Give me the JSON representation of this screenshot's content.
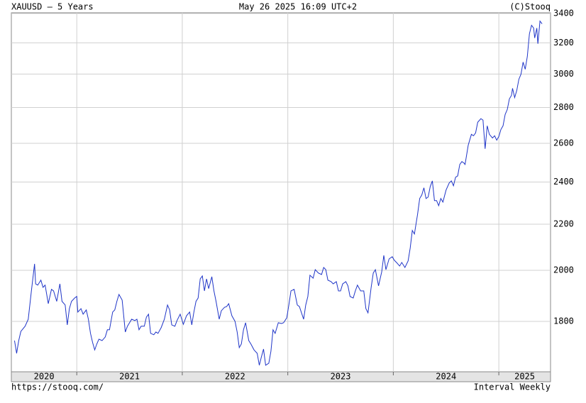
{
  "chart_data": {
    "type": "line",
    "title": "XAUUSD – 5 Years",
    "timestamp": "May 26 2025 16:09 UTC+2",
    "copyright": "(C)Stooq",
    "url": "https://stooq.com/",
    "interval_note": "Interval Weekly",
    "log_scale": true,
    "grid": true,
    "xlim": [
      2020.38,
      2025.49
    ],
    "xticks": [
      2020,
      2021,
      2022,
      2023,
      2024,
      2025
    ],
    "ylim": [
      1622,
      3405
    ],
    "yticks": [
      1800,
      2000,
      2200,
      2400,
      2600,
      2800,
      3000,
      3200,
      3400
    ],
    "x": [
      2020.41,
      2020.43,
      2020.45,
      2020.47,
      2020.51,
      2020.54,
      2020.57,
      2020.6,
      2020.61,
      2020.63,
      2020.66,
      2020.68,
      2020.7,
      2020.73,
      2020.76,
      2020.78,
      2020.81,
      2020.84,
      2020.86,
      2020.89,
      2020.91,
      2020.93,
      2020.95,
      2020.98,
      2021.0,
      2021.01,
      2021.04,
      2021.06,
      2021.09,
      2021.11,
      2021.13,
      2021.15,
      2021.17,
      2021.19,
      2021.21,
      2021.24,
      2021.27,
      2021.29,
      2021.31,
      2021.34,
      2021.36,
      2021.38,
      2021.4,
      2021.43,
      2021.46,
      2021.48,
      2021.5,
      2021.52,
      2021.55,
      2021.57,
      2021.59,
      2021.61,
      2021.64,
      2021.66,
      2021.68,
      2021.7,
      2021.73,
      2021.75,
      2021.77,
      2021.8,
      2021.83,
      2021.86,
      2021.88,
      2021.9,
      2021.93,
      2021.95,
      2021.98,
      2022.01,
      2022.04,
      2022.07,
      2022.09,
      2022.11,
      2022.13,
      2022.15,
      2022.17,
      2022.19,
      2022.21,
      2022.23,
      2022.25,
      2022.28,
      2022.3,
      2022.32,
      2022.35,
      2022.37,
      2022.4,
      2022.42,
      2022.44,
      2022.47,
      2022.5,
      2022.52,
      2022.54,
      2022.56,
      2022.58,
      2022.6,
      2022.63,
      2022.65,
      2022.68,
      2022.71,
      2022.73,
      2022.75,
      2022.77,
      2022.79,
      2022.82,
      2022.84,
      2022.86,
      2022.88,
      2022.91,
      2022.94,
      2022.96,
      2022.99,
      2023.01,
      2023.03,
      2023.06,
      2023.09,
      2023.11,
      2023.15,
      2023.17,
      2023.19,
      2023.21,
      2023.24,
      2023.26,
      2023.29,
      2023.32,
      2023.34,
      2023.36,
      2023.38,
      2023.41,
      2023.43,
      2023.46,
      2023.48,
      2023.5,
      2023.52,
      2023.55,
      2023.57,
      2023.59,
      2023.62,
      2023.64,
      2023.66,
      2023.69,
      2023.72,
      2023.74,
      2023.76,
      2023.79,
      2023.81,
      2023.83,
      2023.86,
      2023.89,
      2023.91,
      2023.93,
      2023.96,
      2023.99,
      2024.01,
      2024.03,
      2024.06,
      2024.08,
      2024.11,
      2024.14,
      2024.16,
      2024.18,
      2024.2,
      2024.23,
      2024.25,
      2024.27,
      2024.29,
      2024.31,
      2024.33,
      2024.35,
      2024.37,
      2024.39,
      2024.41,
      2024.43,
      2024.45,
      2024.47,
      2024.5,
      2024.53,
      2024.55,
      2024.57,
      2024.59,
      2024.61,
      2024.63,
      2024.65,
      2024.67,
      2024.68,
      2024.71,
      2024.74,
      2024.76,
      2024.78,
      2024.8,
      2024.83,
      2024.85,
      2024.87,
      2024.89,
      2024.91,
      2024.94,
      2024.96,
      2024.98,
      2025.0,
      2025.02,
      2025.04,
      2025.06,
      2025.08,
      2025.1,
      2025.12,
      2025.13,
      2025.15,
      2025.17,
      2025.19,
      2025.21,
      2025.23,
      2025.25,
      2025.27,
      2025.29,
      2025.31,
      2025.33,
      2025.34,
      2025.36,
      2025.37,
      2025.39,
      2025.41
    ],
    "series": [
      {
        "name": "XAUUSD",
        "color": "#1f35c8",
        "values": [
          1730,
          1685,
          1730,
          1763,
          1782,
          1808,
          1917,
          2027,
          1945,
          1940,
          1960,
          1931,
          1940,
          1867,
          1923,
          1917,
          1876,
          1945,
          1876,
          1862,
          1787,
          1848,
          1876,
          1889,
          1895,
          1835,
          1848,
          1827,
          1843,
          1808,
          1756,
          1723,
          1697,
          1718,
          1735,
          1730,
          1743,
          1769,
          1769,
          1835,
          1843,
          1876,
          1903,
          1881,
          1761,
          1782,
          1795,
          1808,
          1803,
          1808,
          1769,
          1782,
          1782,
          1816,
          1827,
          1756,
          1751,
          1761,
          1756,
          1777,
          1808,
          1862,
          1843,
          1787,
          1782,
          1803,
          1827,
          1789,
          1821,
          1835,
          1787,
          1835,
          1876,
          1889,
          1965,
          1977,
          1917,
          1965,
          1926,
          1974,
          1917,
          1876,
          1808,
          1840,
          1853,
          1856,
          1867,
          1821,
          1800,
          1761,
          1705,
          1718,
          1769,
          1795,
          1730,
          1718,
          1697,
          1685,
          1644,
          1673,
          1700,
          1644,
          1651,
          1692,
          1769,
          1756,
          1795,
          1792,
          1795,
          1813,
          1862,
          1917,
          1923,
          1862,
          1856,
          1808,
          1862,
          1895,
          1980,
          1968,
          2003,
          1989,
          1983,
          2012,
          2003,
          1960,
          1954,
          1945,
          1954,
          1917,
          1917,
          1945,
          1954,
          1937,
          1895,
          1889,
          1917,
          1940,
          1917,
          1917,
          1848,
          1832,
          1931,
          1989,
          2003,
          1937,
          1994,
          2063,
          2003,
          2048,
          2057,
          2042,
          2033,
          2018,
          2033,
          2012,
          2039,
          2094,
          2172,
          2156,
          2246,
          2320,
          2337,
          2372,
          2320,
          2327,
          2378,
          2406,
          2310,
          2310,
          2286,
          2320,
          2303,
          2361,
          2396,
          2406,
          2382,
          2424,
          2431,
          2489,
          2504,
          2496,
          2489,
          2590,
          2649,
          2641,
          2657,
          2716,
          2736,
          2728,
          2571,
          2696,
          2649,
          2629,
          2641,
          2617,
          2637,
          2676,
          2696,
          2760,
          2788,
          2850,
          2871,
          2913,
          2858,
          2900,
          2968,
          2999,
          3075,
          3030,
          3111,
          3260,
          3318,
          3299,
          3232,
          3299,
          3194,
          3347,
          3328
        ]
      }
    ]
  }
}
